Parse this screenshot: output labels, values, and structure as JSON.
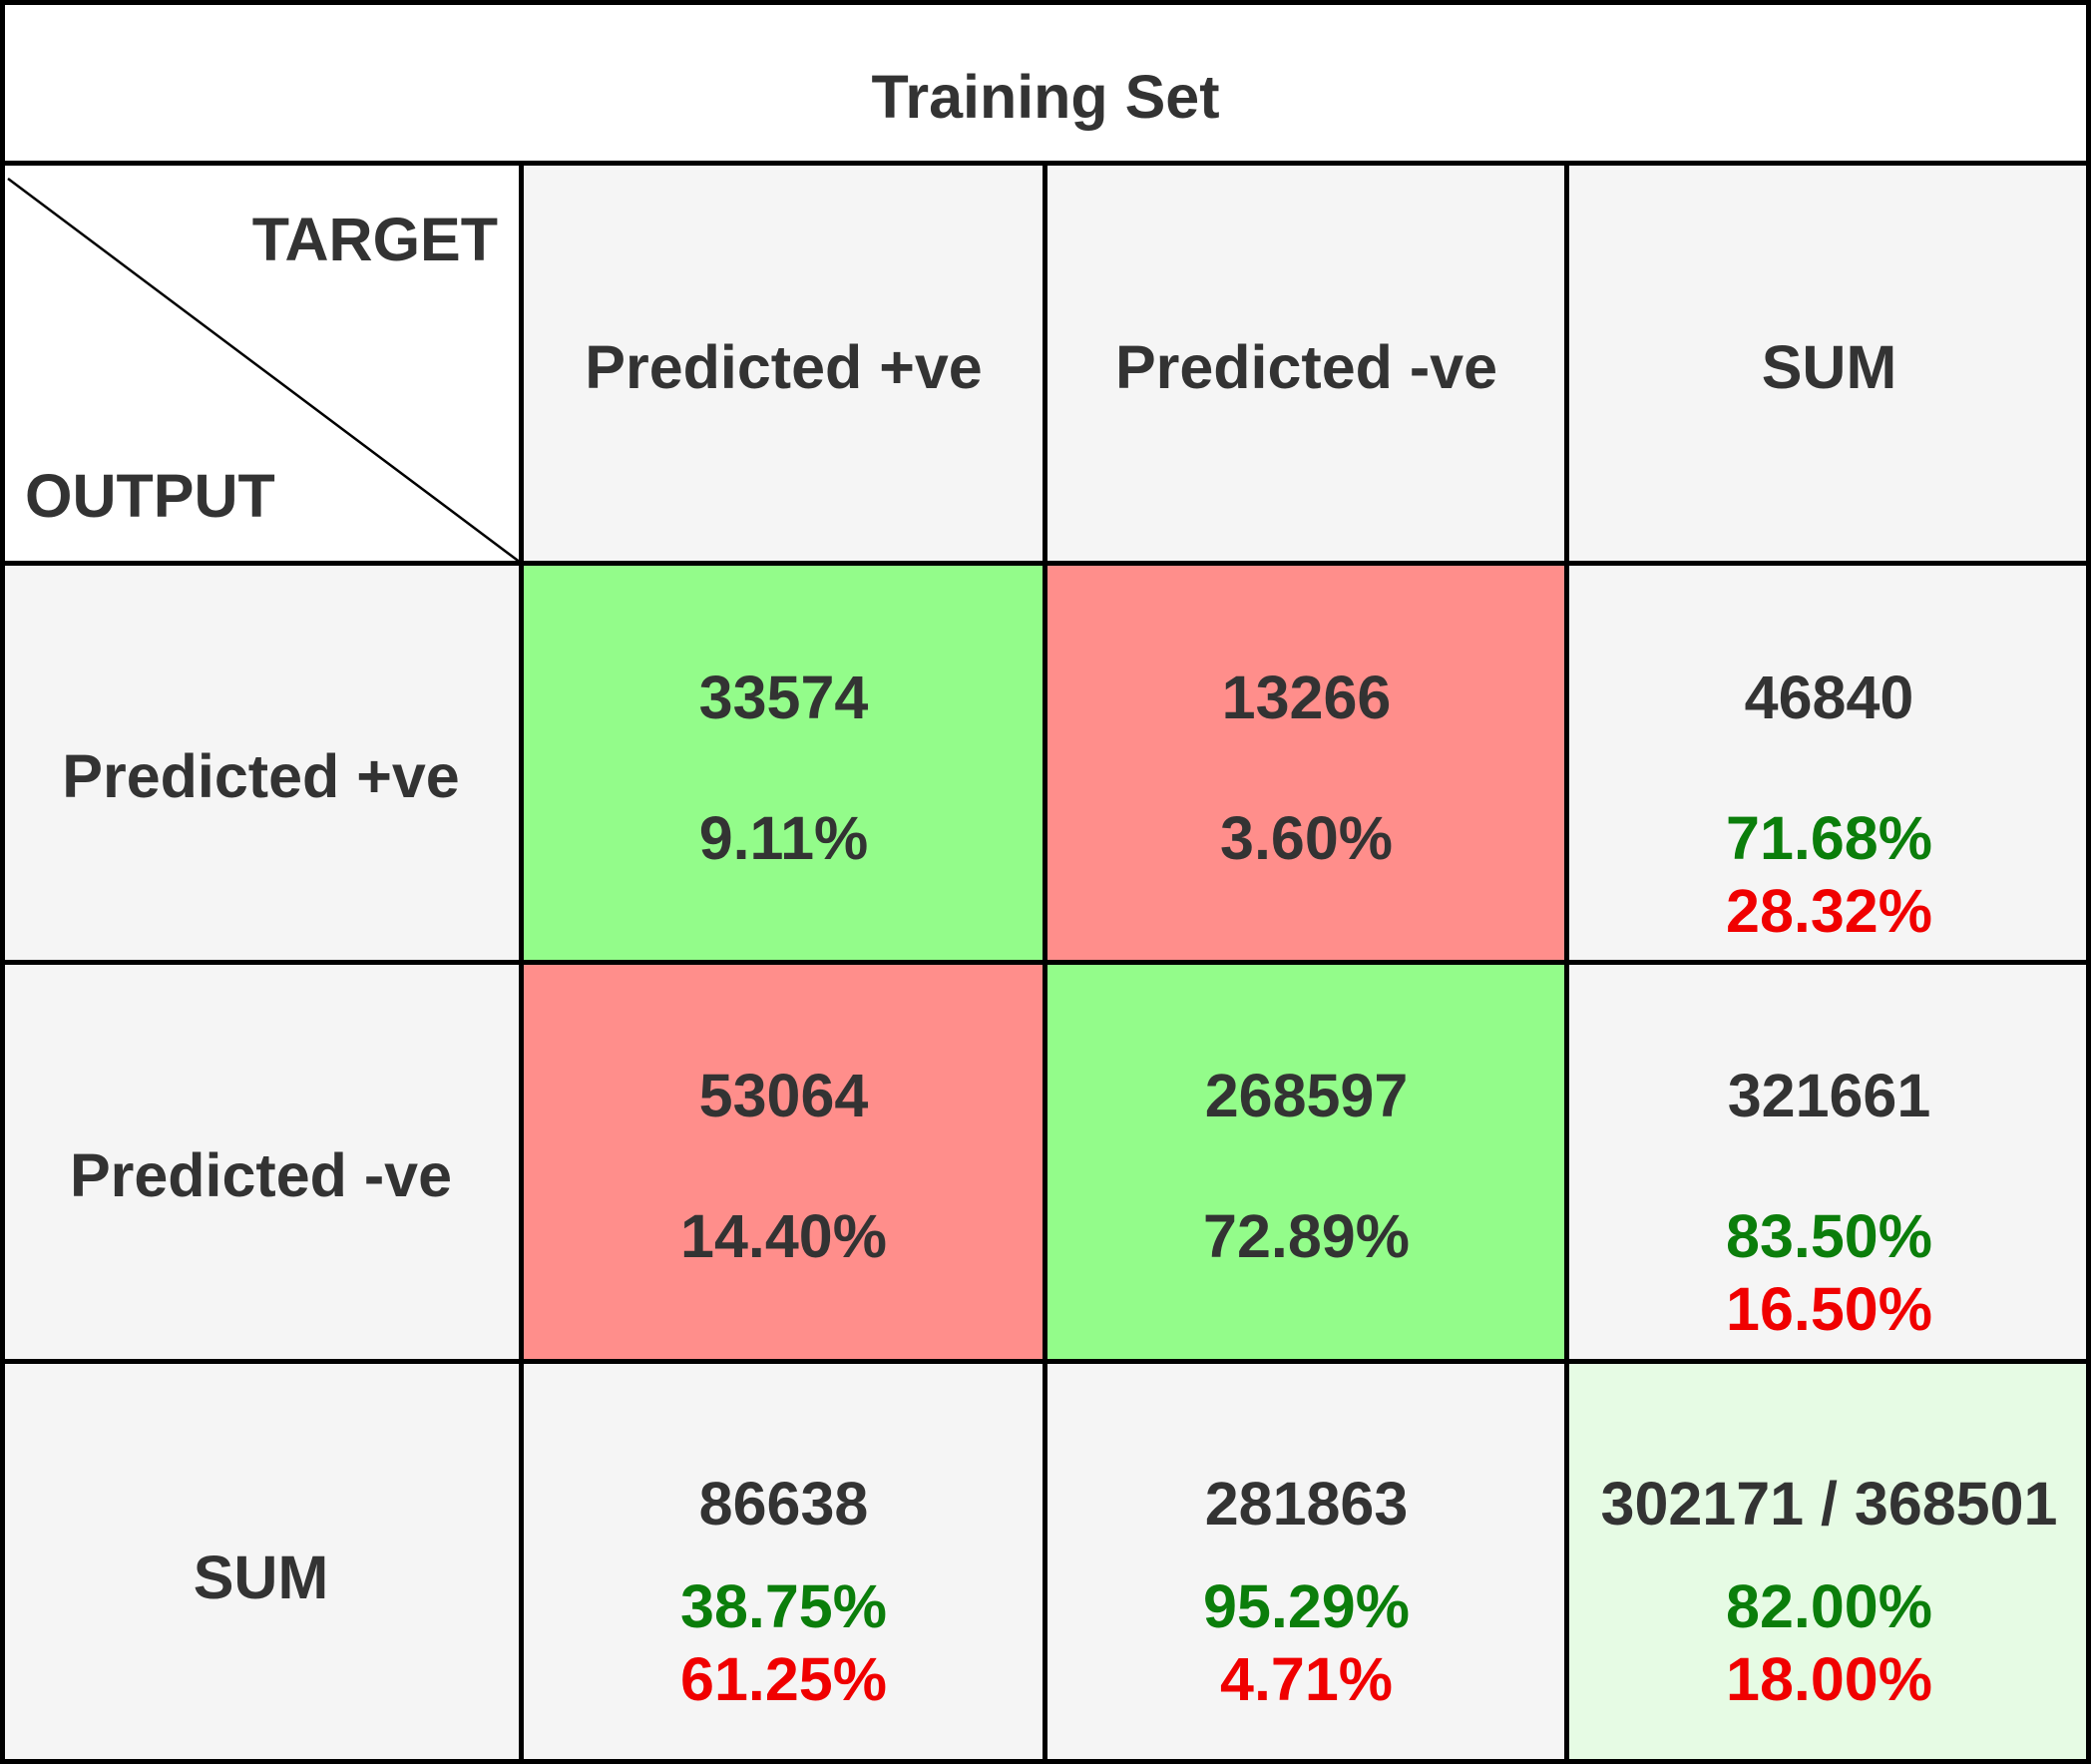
{
  "chart_data": {
    "type": "table",
    "title": "Training Set",
    "corner": {
      "top_label": "TARGET",
      "bottom_label": "OUTPUT"
    },
    "columns": [
      "Predicted +ve",
      "Predicted -ve",
      "SUM"
    ],
    "rows": [
      {
        "label": "Predicted +ve",
        "cells": [
          {
            "count": "33574",
            "percent": "9.11%"
          },
          {
            "count": "13266",
            "percent": "3.60%"
          },
          {
            "count": "46840",
            "good": "71.68%",
            "bad": "28.32%"
          }
        ]
      },
      {
        "label": "Predicted -ve",
        "cells": [
          {
            "count": "53064",
            "percent": "14.40%"
          },
          {
            "count": "268597",
            "percent": "72.89%"
          },
          {
            "count": "321661",
            "good": "83.50%",
            "bad": "16.50%"
          }
        ]
      },
      {
        "label": "SUM",
        "cells": [
          {
            "count": "86638",
            "good": "38.75%",
            "bad": "61.25%"
          },
          {
            "count": "281863",
            "good": "95.29%",
            "bad": "4.71%"
          },
          {
            "count": "302171 / 368501",
            "good": "82.00%",
            "bad": "18.00%"
          }
        ]
      }
    ]
  },
  "colors": {
    "correct_fill": "#93fc8a",
    "error_fill": "#ff8e8b",
    "header_fill": "#f5f5f5",
    "total_fill": "#e6fbe4",
    "text": "#333333",
    "good_text": "#0b7e0b",
    "bad_text": "#f00000",
    "border": "#000000"
  }
}
